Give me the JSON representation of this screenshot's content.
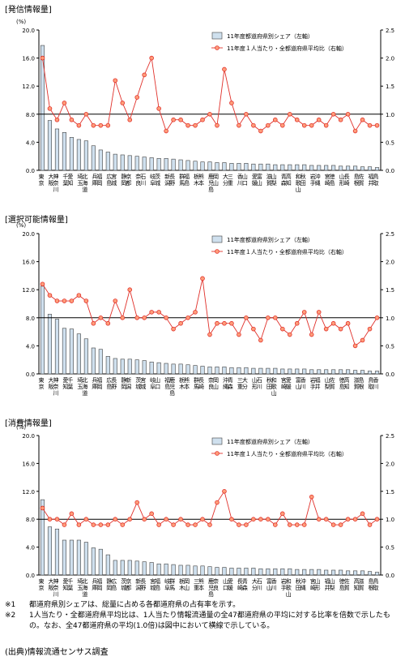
{
  "chart_data": [
    {
      "type": "bar+line",
      "title": "[発信情報量]",
      "y_left_unit": "(%)",
      "y_left_ticks": [
        "20.0",
        "16.0",
        "12.0",
        "8.0",
        "4.0",
        "0.0"
      ],
      "y_right_ticks": [
        "2.5",
        "2.0",
        "1.5",
        "1.0",
        "0.5",
        "0.0"
      ],
      "ylim_left": [
        0,
        20
      ],
      "ylim_right": [
        0,
        2.5
      ],
      "reference_line_right": 1.0,
      "legend": [
        "11年度都道府県別シェア（左軸）",
        "11年度１人当たり・全都道府県平均比（右軸）"
      ],
      "categories": [
        "東京",
        "大阪",
        "神奈川",
        "千葉",
        "愛知",
        "埼玉",
        "北海道",
        "兵庫",
        "福岡",
        "広島",
        "宮城",
        "静岡",
        "京都",
        "奈良",
        "石川",
        "岐阜",
        "茨城",
        "新潟",
        "長野",
        "群馬",
        "福島",
        "栃木",
        "熊本",
        "鹿児島",
        "岡山",
        "大分",
        "三重",
        "香川",
        "山口",
        "愛媛",
        "富山",
        "滋賀",
        "山梨",
        "青森",
        "高知",
        "和歌山",
        "秋田",
        "岩手",
        "沖縄",
        "宮崎",
        "徳島",
        "山形",
        "長崎",
        "島根",
        "佐賀",
        "福井",
        "鳥取"
      ],
      "bars": [
        17.8,
        7.1,
        5.9,
        5.4,
        4.7,
        4.4,
        4.2,
        3.5,
        2.9,
        2.6,
        2.3,
        2.2,
        2.1,
        2.0,
        1.9,
        1.8,
        1.7,
        1.7,
        1.6,
        1.5,
        1.4,
        1.3,
        1.2,
        1.2,
        1.1,
        1.1,
        1.0,
        1.0,
        1.0,
        0.9,
        0.9,
        0.9,
        0.8,
        0.8,
        0.8,
        0.8,
        0.8,
        0.7,
        0.7,
        0.7,
        0.7,
        0.6,
        0.6,
        0.6,
        0.5,
        0.5,
        0.4
      ],
      "line": [
        2.0,
        1.1,
        0.9,
        1.2,
        0.9,
        0.8,
        1.0,
        0.8,
        0.8,
        0.8,
        1.6,
        1.2,
        0.9,
        1.3,
        1.7,
        2.0,
        1.1,
        0.7,
        0.9,
        0.9,
        0.8,
        0.8,
        0.9,
        1.0,
        0.8,
        1.8,
        1.2,
        0.8,
        1.0,
        0.8,
        0.7,
        0.8,
        0.9,
        0.8,
        1.0,
        0.9,
        0.8,
        0.8,
        0.9,
        0.8,
        1.0,
        0.9,
        1.0,
        0.7,
        0.9,
        0.8,
        0.8
      ]
    },
    {
      "type": "bar+line",
      "title": "[選択可能情報量]",
      "y_left_unit": "(%)",
      "y_left_ticks": [
        "20.0",
        "16.0",
        "12.0",
        "8.0",
        "4.0",
        "0.0"
      ],
      "y_right_ticks": [
        "2.5",
        "2.0",
        "1.5",
        "1.0",
        "0.5",
        "0.0"
      ],
      "ylim_left": [
        0,
        20
      ],
      "ylim_right": [
        0,
        2.5
      ],
      "reference_line_right": 1.0,
      "legend": [
        "11年度都道府県別シェア（左軸）",
        "11年度１人当たり・全都道府県平均比（右軸）"
      ],
      "categories": [
        "東京",
        "大阪",
        "神奈川",
        "愛知",
        "千葉",
        "埼玉",
        "北海道",
        "兵庫",
        "福岡",
        "広島",
        "長野",
        "静岡",
        "新潟",
        "茨城",
        "宮城",
        "岐阜",
        "山口",
        "福島",
        "鹿児島",
        "栃木",
        "熊本",
        "群馬",
        "長崎",
        "奈良",
        "岡山",
        "沖縄",
        "青森",
        "三重",
        "大分",
        "山形",
        "石川",
        "秋田",
        "和歌山",
        "宮崎",
        "愛媛",
        "富山",
        "香川",
        "岩手",
        "福井",
        "山梨",
        "佐賀",
        "徳島",
        "高知",
        "滋賀",
        "島根",
        "鳥取",
        "香川"
      ],
      "bars": [
        12.5,
        8.5,
        7.8,
        6.5,
        6.4,
        5.7,
        5.0,
        3.7,
        3.5,
        2.5,
        2.2,
        2.1,
        2.1,
        2.0,
        1.9,
        1.7,
        1.6,
        1.5,
        1.4,
        1.4,
        1.3,
        1.2,
        1.1,
        1.0,
        1.0,
        1.0,
        0.9,
        0.9,
        0.9,
        0.8,
        0.8,
        0.8,
        0.8,
        0.7,
        0.7,
        0.7,
        0.7,
        0.6,
        0.6,
        0.6,
        0.6,
        0.6,
        0.6,
        0.5,
        0.5,
        0.4,
        0.4
      ],
      "line": [
        1.6,
        1.4,
        1.3,
        1.3,
        1.3,
        1.4,
        1.3,
        0.9,
        1.0,
        0.9,
        1.3,
        1.0,
        1.5,
        1.0,
        1.0,
        1.1,
        1.1,
        1.0,
        0.8,
        0.9,
        1.0,
        1.1,
        1.7,
        0.7,
        0.9,
        0.9,
        0.9,
        0.7,
        1.0,
        0.8,
        0.6,
        1.0,
        1.0,
        0.8,
        0.7,
        0.9,
        1.1,
        0.7,
        1.1,
        0.8,
        0.9,
        0.8,
        0.9,
        0.5,
        0.6,
        0.8,
        1.0
      ]
    },
    {
      "type": "bar+line",
      "title": "[消費情報量]",
      "y_left_unit": "(%)",
      "y_left_ticks": [
        "20.0",
        "16.0",
        "12.0",
        "8.0",
        "4.0",
        "0.0"
      ],
      "y_right_ticks": [
        "2.5",
        "2.0",
        "1.5",
        "1.0",
        "0.5",
        "0.0"
      ],
      "ylim_left": [
        0,
        20
      ],
      "ylim_right": [
        0,
        2.5
      ],
      "reference_line_right": 1.0,
      "legend": [
        "11年度都道府県別シェア（左軸）",
        "11年度１人当たり・全都道府県平均比（右軸）"
      ],
      "categories": [
        "東京",
        "大阪",
        "神奈川",
        "愛知",
        "千葉",
        "埼玉",
        "北海道",
        "兵庫",
        "福岡",
        "静岡",
        "広島",
        "茨城",
        "京都",
        "新潟",
        "長野",
        "宮城",
        "福島",
        "岐阜",
        "群馬",
        "栃木",
        "岡山",
        "三重",
        "熊本",
        "鹿児島",
        "奈良",
        "山口",
        "愛媛",
        "長崎",
        "青森",
        "大分",
        "石川",
        "富山",
        "香川",
        "岩手",
        "和歌山",
        "秋田",
        "沖縄",
        "宮崎",
        "山形",
        "福井",
        "山梨",
        "徳島",
        "佐賀",
        "高知",
        "滋賀",
        "島根",
        "鳥取"
      ],
      "bars": [
        10.8,
        6.9,
        6.6,
        5.0,
        5.0,
        5.0,
        4.7,
        3.9,
        3.7,
        2.9,
        2.1,
        2.1,
        2.1,
        2.0,
        1.9,
        1.8,
        1.6,
        1.6,
        1.5,
        1.4,
        1.4,
        1.3,
        1.3,
        1.2,
        1.1,
        1.1,
        1.0,
        1.0,
        1.0,
        1.0,
        0.9,
        0.9,
        0.9,
        0.9,
        0.9,
        0.8,
        0.8,
        0.8,
        0.8,
        0.7,
        0.7,
        0.7,
        0.6,
        0.6,
        0.6,
        0.5,
        0.4
      ],
      "line": [
        1.2,
        1.0,
        1.0,
        0.9,
        1.1,
        0.9,
        1.0,
        0.9,
        0.9,
        0.9,
        1.0,
        0.9,
        1.0,
        1.3,
        1.0,
        1.1,
        0.9,
        1.0,
        0.9,
        1.0,
        0.9,
        0.9,
        1.0,
        0.9,
        1.3,
        1.5,
        1.0,
        0.9,
        0.9,
        1.0,
        1.0,
        1.0,
        0.9,
        1.1,
        0.9,
        0.9,
        0.9,
        1.4,
        1.0,
        1.0,
        0.9,
        0.9,
        1.0,
        1.0,
        1.1,
        0.9,
        1.0
      ]
    }
  ],
  "notes": [
    {
      "mark": "※1",
      "text": "都道府県別シェアは、総量に占める各都道府県の占有率を示す。"
    },
    {
      "mark": "※2",
      "text": "1人当たり・全都道府県平均比は、1人当たり情報流通量の全47都道府県の平均に対する比率を倍数で示したもの。なお、全47都道府県の平均(1.0倍)は図中において横線で示している。"
    }
  ],
  "source": "(出典)情報流通センサス調査",
  "colors": {
    "bar_fill": "#cfe0ee",
    "bar_stroke": "#404040",
    "line": "#e0302a",
    "marker_fill": "#ff9d7a",
    "axis": "#000000"
  }
}
